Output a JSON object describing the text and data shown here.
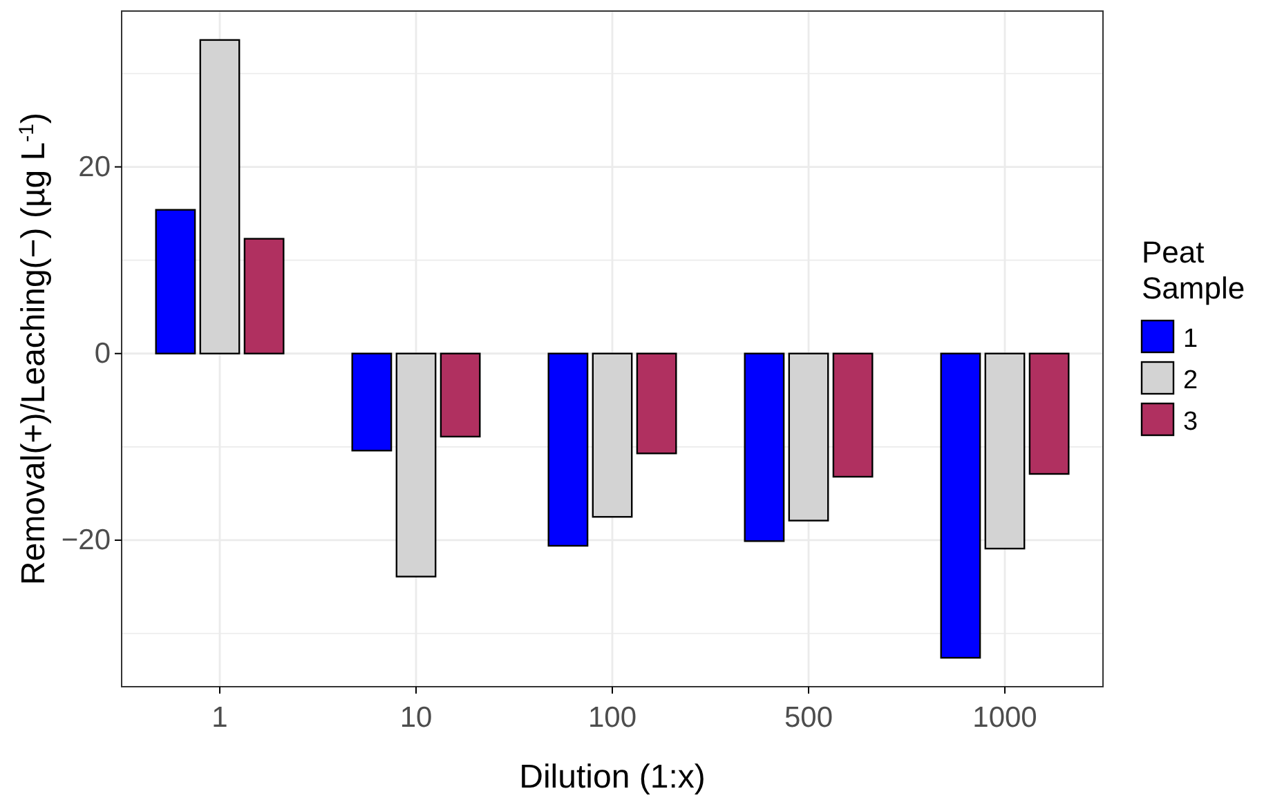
{
  "chart_data": {
    "type": "bar",
    "xlabel": "Dilution (1:x)",
    "ylabel": "Removal(+)/Leaching(−) (µg L$^{-1}$)",
    "legend_title": "Peat Sample",
    "legend": "right",
    "grid": true,
    "categories": [
      "1",
      "10",
      "100",
      "500",
      "1000"
    ],
    "series": [
      {
        "name": "1",
        "color": "#0000ff",
        "values": [
          15.4,
          -10.4,
          -20.6,
          -20.1,
          -32.6
        ]
      },
      {
        "name": "2",
        "color": "#d3d3d3",
        "values": [
          33.6,
          -23.9,
          -17.5,
          -17.9,
          -20.9
        ]
      },
      {
        "name": "3",
        "color": "#b03060",
        "values": [
          12.3,
          -8.9,
          -10.7,
          -13.2,
          -12.9
        ]
      }
    ],
    "ylim": [
      -35.7,
      36.7
    ],
    "yticks": [
      {
        "value": -30,
        "label": null
      },
      -20,
      {
        "value": -10,
        "label": null
      },
      0,
      {
        "value": 10,
        "label": null
      },
      20,
      {
        "value": 30,
        "label": null
      }
    ]
  }
}
